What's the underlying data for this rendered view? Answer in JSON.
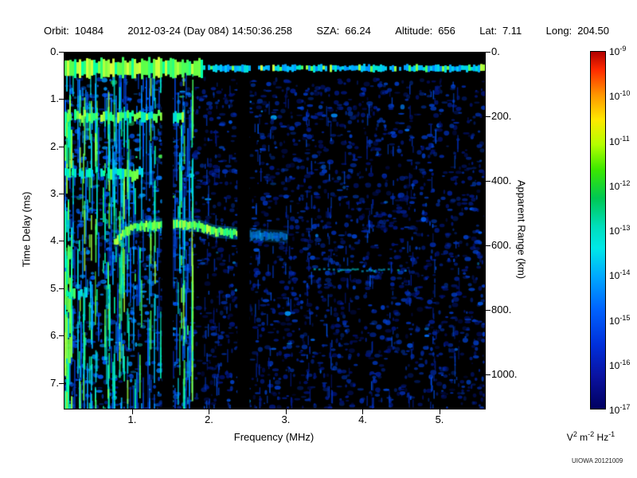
{
  "header": {
    "fields": [
      {
        "label": "Orbit:",
        "value": "10484"
      },
      {
        "label": "",
        "value": "2012-03-24 (Day 084) 14:50:36.258"
      },
      {
        "label": "SZA:",
        "value": "66.24"
      },
      {
        "label": "Altitude:",
        "value": "656"
      },
      {
        "label": "Lat:",
        "value": "7.11"
      },
      {
        "label": "Long:",
        "value": "204.50"
      }
    ]
  },
  "watermark": "UIOWA 20121009",
  "chart_data": {
    "type": "heatmap",
    "title": "",
    "xlabel": "Frequency (MHz)",
    "x_range": [
      0.11,
      5.58
    ],
    "x_ticks": [
      1,
      2,
      3,
      4,
      5
    ],
    "x_tick_labels": [
      "1.",
      "2.",
      "3.",
      "4.",
      "5."
    ],
    "ylabel_left": "Time Delay (ms)",
    "y_range": [
      0,
      7.53
    ],
    "y_ticks": [
      0,
      1,
      2,
      3,
      4,
      5,
      6,
      7
    ],
    "y_tick_labels": [
      "0.",
      "1.",
      "2.",
      "3.",
      "4.",
      "5.",
      "6.",
      "7."
    ],
    "ylabel_right": "Apparent Range (km)",
    "y2_range": [
      0,
      1104
    ],
    "y2_ticks": [
      0,
      200,
      400,
      600,
      800,
      1000
    ],
    "y2_tick_labels": [
      "0.",
      "200.",
      "400.",
      "600.",
      "800.",
      "1000."
    ],
    "grid": false,
    "colorbar": {
      "scale": "log",
      "range_min": "1e-17",
      "range_max": "1e-9",
      "base": "10",
      "tick_exponents": [
        "-9",
        "-10",
        "-11",
        "-12",
        "-13",
        "-14",
        "-15",
        "-16",
        "-17"
      ],
      "unit_parts": [
        [
          "V",
          "2"
        ],
        [
          " m",
          "-2"
        ],
        [
          " Hz",
          "-1"
        ]
      ],
      "stops": [
        {
          "c": "#b00000",
          "p": 0
        },
        {
          "c": "#ff2a00",
          "p": 5
        },
        {
          "c": "#ff9500",
          "p": 12
        },
        {
          "c": "#ffe800",
          "p": 19
        },
        {
          "c": "#b4ff00",
          "p": 26
        },
        {
          "c": "#3ce800",
          "p": 33
        },
        {
          "c": "#00c853",
          "p": 41
        },
        {
          "c": "#00debc",
          "p": 49
        },
        {
          "c": "#00e8e8",
          "p": 55
        },
        {
          "c": "#00a8ff",
          "p": 63
        },
        {
          "c": "#0064ff",
          "p": 72
        },
        {
          "c": "#0030dc",
          "p": 82
        },
        {
          "c": "#0a12a0",
          "p": 91
        },
        {
          "c": "#000060",
          "p": 100
        }
      ]
    },
    "features": {
      "noise_left_max_freq": 1.78,
      "surface_band": {
        "delay": 0.33,
        "thickness_ms": 0.18,
        "left_bright_max_freq": 1.9
      },
      "harmonic_bands": [
        {
          "f0": 0.11,
          "f1": 1.65,
          "delay": 1.35,
          "intensity": 0.85
        },
        {
          "f0": 0.11,
          "f1": 1.12,
          "delay": 2.55,
          "intensity": 0.78
        },
        {
          "f0": 0.13,
          "f1": 0.4,
          "delay": 5.1,
          "intensity": 0.8
        }
      ],
      "ionosphere_trace": [
        [
          0.75,
          4.02
        ],
        [
          0.9,
          3.76
        ],
        [
          1.1,
          3.66
        ],
        [
          1.5,
          3.62
        ],
        [
          1.85,
          3.66
        ],
        [
          2.05,
          3.78
        ],
        [
          2.45,
          3.84
        ],
        [
          3.0,
          3.9
        ]
      ],
      "faint_streak": {
        "f0": 3.35,
        "f1": 4.55,
        "delay": 4.58
      },
      "gap_columns": [
        [
          1.38,
          1.52
        ],
        [
          2.36,
          2.52
        ]
      ],
      "right_streaks": [
        1.95,
        2.08,
        2.22,
        2.62,
        2.78,
        3.02,
        3.28,
        3.55,
        3.78,
        4.08,
        4.35,
        4.6,
        4.9,
        5.2
      ]
    }
  }
}
